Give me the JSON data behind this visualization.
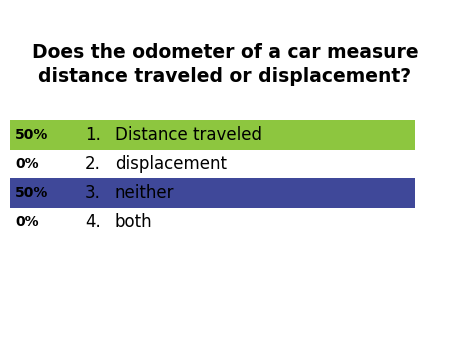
{
  "title_line1": "Does the odometer of a car measure",
  "title_line2": "distance traveled or displacement?",
  "options": [
    {
      "number": "1.",
      "text": "Distance traveled",
      "percent": "50%",
      "highlight": true,
      "color": "#8dc63f"
    },
    {
      "number": "2.",
      "text": "displacement",
      "percent": "0%",
      "highlight": false,
      "color": null
    },
    {
      "number": "3.",
      "text": "neither",
      "percent": "50%",
      "highlight": true,
      "color": "#3f4899"
    },
    {
      "number": "4.",
      "text": "both",
      "percent": "0%",
      "highlight": false,
      "color": null
    }
  ],
  "bg_color": "#ffffff",
  "text_color": "#000000",
  "title_fontsize": 13.5,
  "option_fontsize": 12,
  "percent_fontsize": 10
}
